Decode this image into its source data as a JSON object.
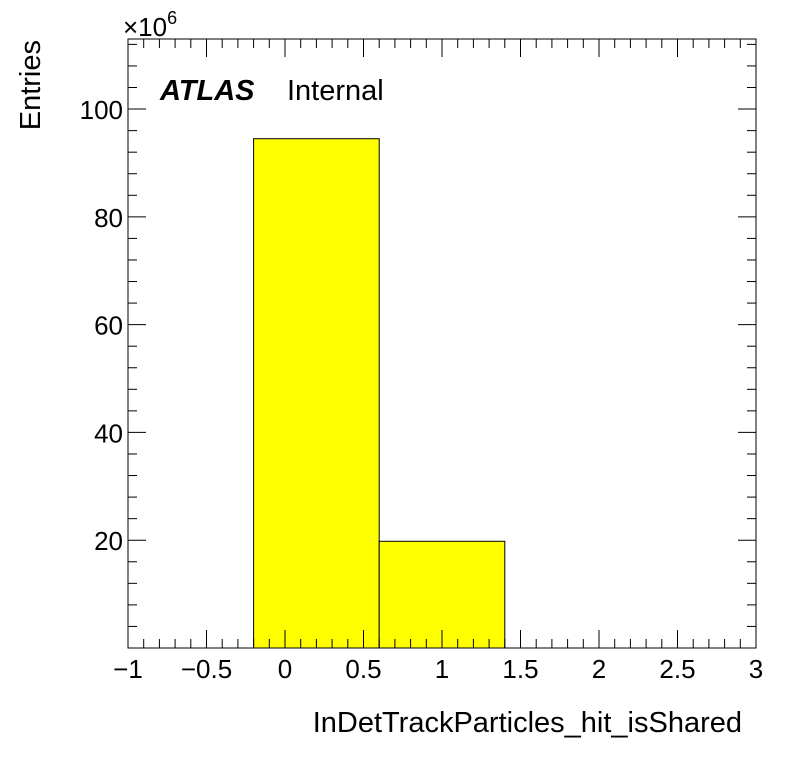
{
  "chart_data": {
    "type": "histogram",
    "xlabel": "InDetTrackParticles_hit_isShared",
    "ylabel": "Entries",
    "y_multiplier": "×10",
    "y_multiplier_exp": "6",
    "label_bold": "ATLAS",
    "label_text": "Internal",
    "xlim": [
      -1,
      3
    ],
    "ylim": [
      0,
      113
    ],
    "x_ticks": [
      -1,
      -0.5,
      0,
      0.5,
      1,
      1.5,
      2,
      2.5,
      3
    ],
    "x_tick_labels": [
      "−1",
      "−0.5",
      "0",
      "0.5",
      "1",
      "1.5",
      "2",
      "2.5",
      "3"
    ],
    "y_ticks": [
      20,
      40,
      60,
      80,
      100
    ],
    "y_tick_labels": [
      "20",
      "40",
      "60",
      "80",
      "100"
    ],
    "bins": [
      {
        "low": -0.2,
        "high": 0.6,
        "value": 94.5
      },
      {
        "low": 0.6,
        "high": 1.4,
        "value": 19.8
      }
    ],
    "fill_color": "#ffff00",
    "line_color": "#000000",
    "grid": false,
    "legend": "none"
  }
}
